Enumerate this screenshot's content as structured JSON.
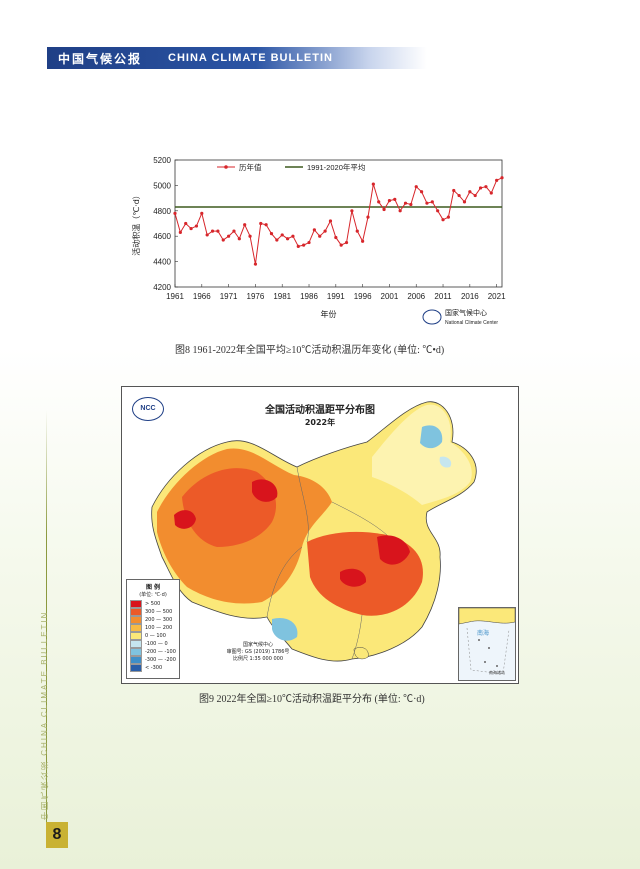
{
  "header": {
    "cn": "中国气候公报",
    "en": "CHINA CLIMATE BULLETIN"
  },
  "sidebar": {
    "text": "中国气候公报 CHINA CLIMATE BULLETIN"
  },
  "page_number": "8",
  "figure8": {
    "caption": "图8 1961-2022年全国平均≥10℃活动积温历年变化 (单位: ℃•d)",
    "logo_text_cn": "国家气候中心",
    "logo_text_en": "National Climate Center",
    "chart_data": {
      "type": "line",
      "xlabel": "年份",
      "ylabel": "活动积温（℃·d）",
      "xlim": [
        1961,
        2022
      ],
      "ylim": [
        4200,
        5200
      ],
      "x_ticks": [
        1961,
        1966,
        1971,
        1976,
        1981,
        1986,
        1991,
        1996,
        2001,
        2006,
        2011,
        2016,
        2021
      ],
      "y_ticks": [
        4200,
        4400,
        4600,
        4800,
        5000,
        5200
      ],
      "series": [
        {
          "name": "历年值",
          "color": "#d7262b",
          "x": [
            1961,
            1962,
            1963,
            1964,
            1965,
            1966,
            1967,
            1968,
            1969,
            1970,
            1971,
            1972,
            1973,
            1974,
            1975,
            1976,
            1977,
            1978,
            1979,
            1980,
            1981,
            1982,
            1983,
            1984,
            1985,
            1986,
            1987,
            1988,
            1989,
            1990,
            1991,
            1992,
            1993,
            1994,
            1995,
            1996,
            1997,
            1998,
            1999,
            2000,
            2001,
            2002,
            2003,
            2004,
            2005,
            2006,
            2007,
            2008,
            2009,
            2010,
            2011,
            2012,
            2013,
            2014,
            2015,
            2016,
            2017,
            2018,
            2019,
            2020,
            2021,
            2022
          ],
          "values": [
            4780,
            4630,
            4700,
            4660,
            4680,
            4780,
            4610,
            4640,
            4640,
            4570,
            4600,
            4640,
            4580,
            4690,
            4600,
            4380,
            4700,
            4690,
            4620,
            4570,
            4610,
            4580,
            4600,
            4520,
            4530,
            4550,
            4650,
            4600,
            4640,
            4720,
            4590,
            4530,
            4550,
            4800,
            4640,
            4560,
            4750,
            5010,
            4870,
            4810,
            4880,
            4890,
            4800,
            4860,
            4850,
            4990,
            4950,
            4860,
            4870,
            4800,
            4730,
            4750,
            4960,
            4920,
            4870,
            4950,
            4920,
            4980,
            4990,
            4940,
            5040,
            5060
          ]
        },
        {
          "name": "1991-2020年平均",
          "color": "#3d5a1e",
          "x": [
            1961,
            2022
          ],
          "values": [
            4830,
            4830
          ]
        }
      ],
      "legend": "top-left"
    }
  },
  "figure9": {
    "caption": "图9 2022年全国≥10℃活动积温距平分布 (单位: ℃·d)",
    "map_title": "全国活动积温距平分布图",
    "map_subtitle": "2022年",
    "logo": "NCC",
    "legend_title": "图 例",
    "legend_unit": "(单位: ℃·d)",
    "legend_items": [
      {
        "label": "> 500",
        "color": "#d8141c"
      },
      {
        "label": "300 — 500",
        "color": "#ec5a28"
      },
      {
        "label": "200 — 300",
        "color": "#f28d2f"
      },
      {
        "label": "100 — 200",
        "color": "#f7bb45"
      },
      {
        "label": "0 — 100",
        "color": "#fbe879"
      },
      {
        "label": "-100 — 0",
        "color": "#c6e6ef"
      },
      {
        "label": "-200 — -100",
        "color": "#7fc3df"
      },
      {
        "label": "-300 — -200",
        "color": "#3f8fc8"
      },
      {
        "label": "< -300",
        "color": "#2a5ea8"
      }
    ],
    "credit_lines": [
      "国家气候中心",
      "审图号: GS (2019) 1786号",
      "比例尺 1:35 000 000"
    ],
    "inset_label": "南海",
    "inset_sublabel": "南海诸岛"
  }
}
